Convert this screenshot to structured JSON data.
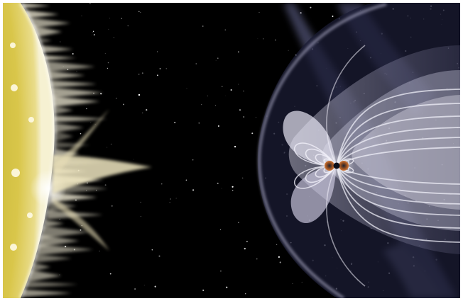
{
  "scene": {
    "subjects": [
      "sun",
      "solar-wind",
      "earth",
      "magnetosphere",
      "bow-shock",
      "stars"
    ],
    "colors": {
      "space": "#000000",
      "sun_core": "#d9c64a",
      "sun_glow": "#f4efc8",
      "field_line": "#e8e6f2",
      "earth_warm": "#c0642a"
    }
  }
}
